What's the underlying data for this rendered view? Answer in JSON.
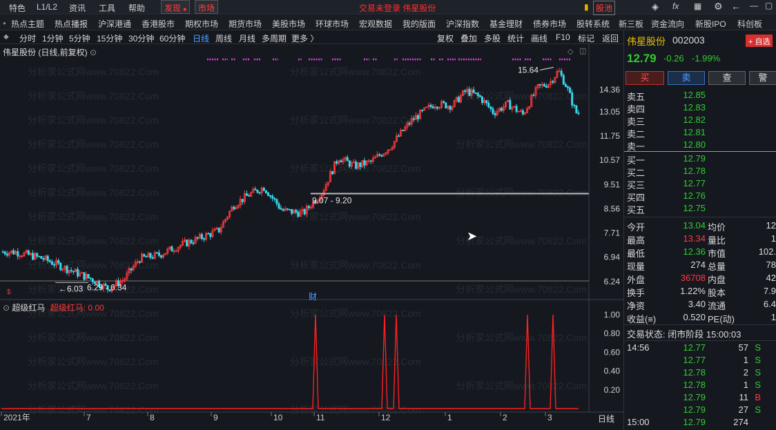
{
  "topbar": {
    "items": [
      "特色",
      "L1/L2",
      "资讯",
      "工具",
      "帮助"
    ],
    "discover": "发现",
    "market": "市场",
    "center_title": "交易未登录  伟星股份",
    "stock_pool": "股池"
  },
  "navbar": {
    "items": [
      "热点主题",
      "热点播报",
      "沪深港通",
      "香港股市",
      "期权市场",
      "期货市场",
      "美股市场",
      "环球市场",
      "宏观数据",
      "我的版面",
      "沪深指数",
      "基金理财",
      "债券市场",
      "股转系统",
      "新三板",
      "资金流向",
      "新股IPO",
      "科创板"
    ]
  },
  "periods": {
    "items": [
      "分时",
      "1分钟",
      "5分钟",
      "15分钟",
      "30分钟",
      "60分钟",
      "日线",
      "周线",
      "月线",
      "多周期",
      "更多 〉"
    ],
    "active": "日线",
    "tools": [
      "复权",
      "叠加",
      "多股",
      "统计",
      "画线",
      "F10",
      "标记",
      "返回"
    ]
  },
  "chart": {
    "title": "伟星股份 (日线,前复权)",
    "indicator_name": "超级红马",
    "indicator_value": "超级红马: 0.00",
    "watermark": "分析家公式网www.70822.Com",
    "marker_finance": "财",
    "period_label": "日线"
  },
  "chart_data": [
    {
      "type": "candlestick",
      "title": "伟星股份 (日线,前复权)",
      "y_ticks": [
        14.36,
        13.05,
        11.75,
        10.57,
        9.51,
        8.56,
        7.71,
        6.94,
        6.24
      ],
      "x_ticks": [
        "2021年",
        "7",
        "8",
        "9",
        "10",
        "11",
        "12",
        "1",
        "2",
        "3"
      ],
      "annotations": [
        {
          "label": "15.64",
          "value": 15.64
        },
        {
          "label": "9.07 - 9.20",
          "value": 9.2
        },
        {
          "label": "6.29 - 6.34",
          "value": 6.29
        },
        {
          "label": "6.03",
          "value": 6.03
        }
      ],
      "close_path": [
        [
          "2021年",
          7.1
        ],
        [
          "2021年",
          6.9
        ],
        [
          "2021年",
          6.55
        ],
        [
          "7",
          6.3
        ],
        [
          "7",
          6.05
        ],
        [
          "7",
          6.3
        ],
        [
          "7",
          6.9
        ],
        [
          "8",
          7.0
        ],
        [
          "8",
          7.3
        ],
        [
          "8",
          7.55
        ],
        [
          "9",
          7.8
        ],
        [
          "9",
          8.7
        ],
        [
          "9",
          9.1
        ],
        [
          "9",
          9.4
        ],
        [
          "10",
          8.5
        ],
        [
          "10",
          8.4
        ],
        [
          "11",
          9.2
        ],
        [
          "11",
          10.7
        ],
        [
          "11",
          10.3
        ],
        [
          "11",
          10.5
        ],
        [
          "12",
          11.2
        ],
        [
          "12",
          12.6
        ],
        [
          "12",
          13.5
        ],
        [
          "1",
          13.4
        ],
        [
          "1",
          14.3
        ],
        [
          "1",
          13.9
        ],
        [
          "1",
          13.0
        ],
        [
          "2",
          13.5
        ],
        [
          "2",
          12.9
        ],
        [
          "2",
          14.5
        ],
        [
          "3",
          14.8
        ],
        [
          "3",
          15.6
        ],
        [
          "3",
          14.5
        ],
        [
          "3",
          13.0
        ]
      ]
    },
    {
      "type": "line",
      "title": "超级红马",
      "y_ticks": [
        1.0,
        0.8,
        0.6,
        0.4,
        0.2
      ],
      "ylim": [
        0,
        1
      ],
      "spikes": [
        "11",
        "12",
        "12",
        "12",
        "2",
        "3"
      ],
      "last_value": 0.0
    }
  ],
  "quote": {
    "name": "伟星股份",
    "code": "002003",
    "add_fav": "+ 自选",
    "price": "12.79",
    "change": "-0.26",
    "change_pct": "-1.99%",
    "buttons": [
      "买",
      "卖",
      "查",
      "警"
    ],
    "asks": [
      {
        "label": "卖五",
        "price": "12.85"
      },
      {
        "label": "卖四",
        "price": "12.83"
      },
      {
        "label": "卖三",
        "price": "12.82"
      },
      {
        "label": "卖二",
        "price": "12.81"
      },
      {
        "label": "卖一",
        "price": "12.80"
      }
    ],
    "bids": [
      {
        "label": "买一",
        "price": "12.79"
      },
      {
        "label": "买二",
        "price": "12.78"
      },
      {
        "label": "买三",
        "price": "12.77"
      },
      {
        "label": "买四",
        "price": "12.76"
      },
      {
        "label": "买五",
        "price": "12.75"
      }
    ],
    "stats": [
      {
        "l1": "今开",
        "v1": "13.04",
        "c1": "green",
        "l2": "均价",
        "v2": "12"
      },
      {
        "l1": "最高",
        "v1": "13.34",
        "c1": "red",
        "l2": "量比",
        "v2": "1"
      },
      {
        "l1": "最低",
        "v1": "12.36",
        "c1": "green",
        "l2": "市值",
        "v2": "102."
      },
      {
        "l1": "现量",
        "v1": "274",
        "c1": "white",
        "l2": "总量",
        "v2": "78"
      },
      {
        "l1": "外盘",
        "v1": "36708",
        "c1": "red",
        "l2": "内盘",
        "v2": "42"
      },
      {
        "l1": "换手",
        "v1": "1.22%",
        "c1": "white",
        "l2": "股本",
        "v2": "7.9"
      },
      {
        "l1": "净资",
        "v1": "3.40",
        "c1": "white",
        "l2": "流通",
        "v2": "6.4"
      },
      {
        "l1": "收益(≡)",
        "v1": "0.520",
        "c1": "white",
        "l2": "PE(动)",
        "v2": "1"
      }
    ],
    "trade_status": "交易状态: 闭市阶段 15:00:03",
    "ticks": [
      {
        "time": "14:56",
        "price": "12.77",
        "vol": "57",
        "dir": "S"
      },
      {
        "time": "",
        "price": "12.77",
        "vol": "1",
        "dir": "S"
      },
      {
        "time": "",
        "price": "12.78",
        "vol": "2",
        "dir": "S"
      },
      {
        "time": "",
        "price": "12.78",
        "vol": "1",
        "dir": "S"
      },
      {
        "time": "",
        "price": "12.79",
        "vol": "11",
        "dir": "B"
      },
      {
        "time": "",
        "price": "12.79",
        "vol": "27",
        "dir": "S"
      },
      {
        "time": "15:00",
        "price": "12.79",
        "vol": "274",
        "dir": ""
      }
    ]
  }
}
